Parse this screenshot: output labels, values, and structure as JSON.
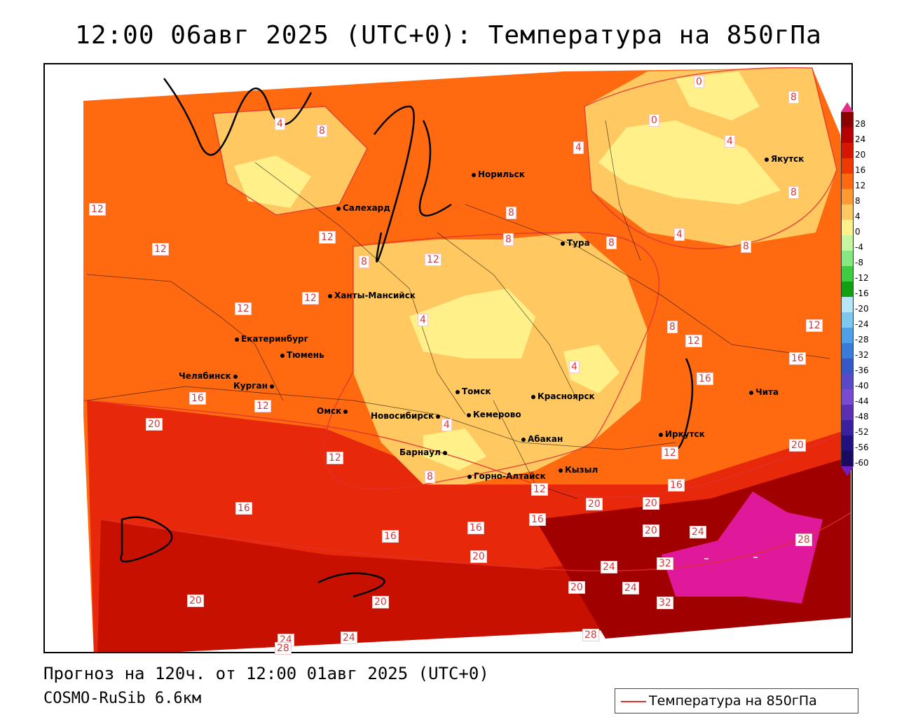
{
  "title": "12:00 06авг 2025 (UTC+0): Температура на 850гПа",
  "footer": {
    "forecast": "Прогноз на 120ч. от 12:00 01авг 2025 (UTC+0)",
    "model": "COSMO-RuSib 6.6км"
  },
  "legend": {
    "series_label": "Температура на 850гПа",
    "line_color": "#e03030"
  },
  "colorbar": {
    "labels": [
      "28",
      "24",
      "20",
      "16",
      "12",
      "8",
      "4",
      "0",
      "-4",
      "-8",
      "-12",
      "-16",
      "-20",
      "-24",
      "-28",
      "-32",
      "-36",
      "-40",
      "-44",
      "-48",
      "-52",
      "-56",
      "-60"
    ],
    "colors": [
      "#8b0000",
      "#b80000",
      "#d81500",
      "#ee3a00",
      "#ff6a10",
      "#ff9a30",
      "#ffc860",
      "#fff08a",
      "#c6f7a0",
      "#86e880",
      "#40cc40",
      "#10a010",
      "#b7e7f7",
      "#7ec8f0",
      "#4ea0e8",
      "#3a7ad8",
      "#3458c8",
      "#5a48c8",
      "#7a4ad0",
      "#5a30b0",
      "#3a20a0",
      "#201080",
      "#1a0a60"
    ],
    "top_color": "#e0308a",
    "bottom_color": "#7020c0"
  },
  "cities": [
    {
      "name": "Норильск"
    },
    {
      "name": "Салехард"
    },
    {
      "name": "Тура"
    },
    {
      "name": "Якутск"
    },
    {
      "name": "Ханты-Мансийск"
    },
    {
      "name": "Екатеринбург"
    },
    {
      "name": "Тюмень"
    },
    {
      "name": "Челябинск"
    },
    {
      "name": "Курган"
    },
    {
      "name": "Омск"
    },
    {
      "name": "Томск"
    },
    {
      "name": "Красноярск"
    },
    {
      "name": "Новосибирск"
    },
    {
      "name": "Кемерово"
    },
    {
      "name": "Барнаул"
    },
    {
      "name": "Абакан"
    },
    {
      "name": "Иркутск"
    },
    {
      "name": "Чита"
    },
    {
      "name": "Горно-Алтайск"
    },
    {
      "name": "Кызыл"
    }
  ],
  "contour_labels": [
    "0",
    "0",
    "4",
    "4",
    "4",
    "4",
    "4",
    "4",
    "4",
    "8",
    "8",
    "8",
    "8",
    "8",
    "8",
    "8",
    "8",
    "8",
    "8",
    "12",
    "12",
    "12",
    "12",
    "12",
    "12",
    "12",
    "12",
    "12",
    "12",
    "12",
    "12",
    "16",
    "16",
    "16",
    "16",
    "16",
    "16",
    "16",
    "16",
    "20",
    "20",
    "20",
    "20",
    "20",
    "20",
    "20",
    "20",
    "20",
    "24",
    "24",
    "24",
    "24",
    "24",
    "28",
    "28",
    "28",
    "32",
    "32"
  ]
}
